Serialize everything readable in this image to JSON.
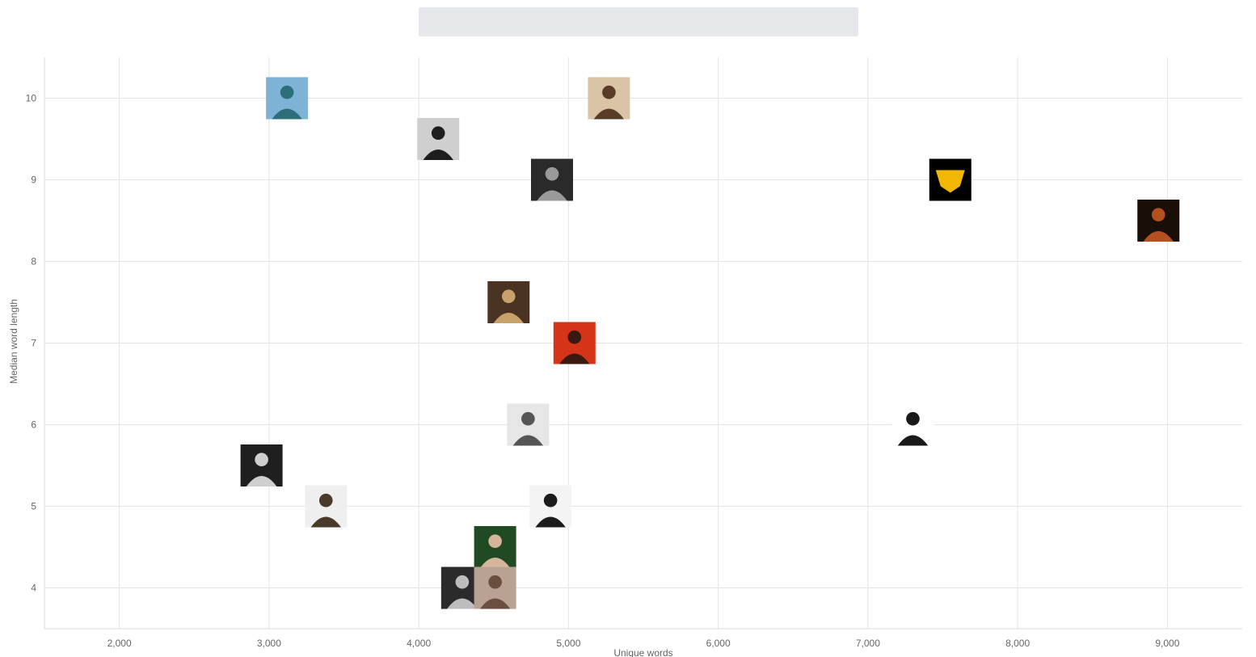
{
  "chart_data": {
    "type": "scatter",
    "title": "",
    "xlabel": "Unique words",
    "ylabel": "Median word length",
    "xlim": [
      1500,
      9500
    ],
    "ylim": [
      3.5,
      10.5
    ],
    "x_ticks": [
      2000,
      3000,
      4000,
      5000,
      6000,
      7000,
      8000,
      9000
    ],
    "y_ticks": [
      4,
      5,
      6,
      7,
      8,
      9,
      10
    ],
    "grid": true,
    "legend": "none",
    "points": [
      {
        "x": 3120,
        "y": 10.0,
        "marker": "artist-photo",
        "fill": "#7fb3d6",
        "accent": "#2c6f7a"
      },
      {
        "x": 5270,
        "y": 10.0,
        "marker": "artist-photo",
        "fill": "#d9c4a5",
        "accent": "#5a3b26"
      },
      {
        "x": 4130,
        "y": 9.5,
        "marker": "artist-photo",
        "fill": "#cfcfcf",
        "accent": "#1e1e1e"
      },
      {
        "x": 4890,
        "y": 9.0,
        "marker": "artist-photo",
        "fill": "#2a2a2a",
        "accent": "#9a9a9a"
      },
      {
        "x": 7550,
        "y": 9.0,
        "marker": "group-logo",
        "fill": "#000000",
        "accent": "#f2b705"
      },
      {
        "x": 8940,
        "y": 8.5,
        "marker": "artist-photo",
        "fill": "#1a0e08",
        "accent": "#b3501e"
      },
      {
        "x": 4600,
        "y": 7.5,
        "marker": "artist-photo",
        "fill": "#4a3322",
        "accent": "#c9a26b"
      },
      {
        "x": 5040,
        "y": 7.0,
        "marker": "artist-photo",
        "fill": "#d63418",
        "accent": "#3a1a10"
      },
      {
        "x": 4730,
        "y": 6.0,
        "marker": "artist-photo",
        "fill": "#e6e6e6",
        "accent": "#555555"
      },
      {
        "x": 7300,
        "y": 6.0,
        "marker": "artist-photo",
        "fill": "#ffffff",
        "accent": "#1a1a1a"
      },
      {
        "x": 2950,
        "y": 5.5,
        "marker": "artist-photo",
        "fill": "#1f1f1f",
        "accent": "#cfcfcf"
      },
      {
        "x": 3380,
        "y": 5.0,
        "marker": "artist-photo",
        "fill": "#efefef",
        "accent": "#4a3a2a"
      },
      {
        "x": 4880,
        "y": 5.0,
        "marker": "artist-photo",
        "fill": "#f4f4f4",
        "accent": "#1c1c1c"
      },
      {
        "x": 4510,
        "y": 4.5,
        "marker": "artist-photo",
        "fill": "#1f4a22",
        "accent": "#d6b59a"
      },
      {
        "x": 4290,
        "y": 4.0,
        "marker": "artist-photo",
        "fill": "#2b2b2b",
        "accent": "#bdbdbd"
      },
      {
        "x": 4510,
        "y": 4.0,
        "marker": "artist-photo",
        "fill": "#b9a293",
        "accent": "#6a4e3f"
      }
    ]
  }
}
